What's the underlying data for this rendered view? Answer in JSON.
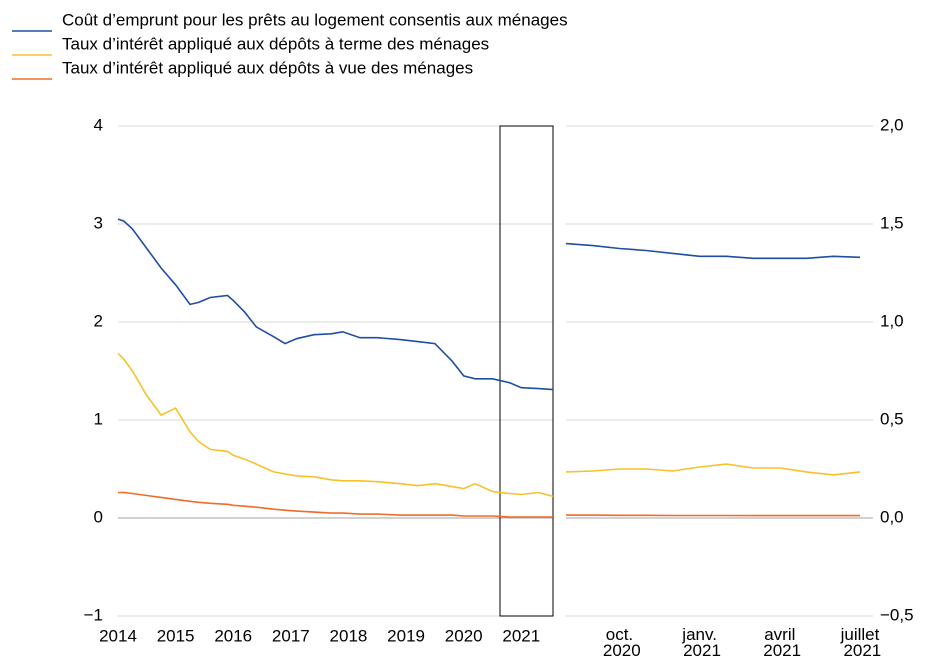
{
  "chart_data": [
    {
      "type": "line",
      "xlim": [
        2014,
        2021.55
      ],
      "xticks": [
        2014,
        2015,
        2016,
        2017,
        2018,
        2019,
        2020,
        2021
      ],
      "ylim": [
        -1,
        4
      ],
      "yticks": [
        {
          "value": -1,
          "label": "−1"
        },
        0,
        1,
        2,
        3,
        4
      ],
      "grid": true,
      "legend": "top-left",
      "x": [
        2014.0,
        2014.1,
        2014.25,
        2014.5,
        2014.75,
        2015.0,
        2015.25,
        2015.4,
        2015.6,
        2015.9,
        2016.0,
        2016.2,
        2016.4,
        2016.7,
        2016.9,
        2017.1,
        2017.4,
        2017.7,
        2017.9,
        2018.2,
        2018.5,
        2018.9,
        2019.2,
        2019.5,
        2019.8,
        2020.0,
        2020.2,
        2020.5,
        2020.8,
        2021.0,
        2021.3,
        2021.55
      ],
      "series": [
        {
          "name": "Coût d’emprunt pour les prêts au logement consentis aux ménages",
          "color": "#1f4ea3",
          "values": [
            3.05,
            3.03,
            2.95,
            2.75,
            2.55,
            2.38,
            2.18,
            2.2,
            2.25,
            2.27,
            2.22,
            2.1,
            1.95,
            1.85,
            1.78,
            1.83,
            1.87,
            1.88,
            1.9,
            1.84,
            1.84,
            1.82,
            1.8,
            1.78,
            1.6,
            1.45,
            1.42,
            1.42,
            1.38,
            1.33,
            1.32,
            1.31
          ]
        },
        {
          "name": "Taux d’intérêt appliqué aux dépôts à terme des ménages",
          "color": "#f5c22b",
          "values": [
            1.68,
            1.62,
            1.5,
            1.25,
            1.05,
            1.12,
            0.88,
            0.78,
            0.7,
            0.68,
            0.64,
            0.6,
            0.55,
            0.47,
            0.45,
            0.43,
            0.42,
            0.39,
            0.38,
            0.38,
            0.37,
            0.35,
            0.33,
            0.35,
            0.32,
            0.3,
            0.35,
            0.27,
            0.25,
            0.24,
            0.26,
            0.22
          ]
        },
        {
          "name": "Taux d’intérêt appliqué aux dépôts à vue des ménages",
          "color": "#f26b2a",
          "values": [
            0.26,
            0.26,
            0.25,
            0.23,
            0.21,
            0.19,
            0.17,
            0.16,
            0.15,
            0.14,
            0.13,
            0.12,
            0.11,
            0.09,
            0.08,
            0.07,
            0.06,
            0.05,
            0.05,
            0.04,
            0.04,
            0.03,
            0.03,
            0.03,
            0.03,
            0.02,
            0.02,
            0.02,
            0.01,
            0.01,
            0.01,
            0.01
          ]
        }
      ]
    },
    {
      "type": "line",
      "categories": [
        null,
        null,
        "oct. 2020",
        null,
        null,
        "janv. 2021",
        null,
        null,
        "avril 2021",
        null,
        null,
        "juillet 2021"
      ],
      "y2lim": [
        -0.5,
        2.0
      ],
      "y2ticks": [
        {
          "value": -0.5,
          "label": "−0,5"
        },
        {
          "value": 0,
          "label": "0,0"
        },
        {
          "value": 0.5,
          "label": "0,5"
        },
        {
          "value": 1,
          "label": "1,0"
        },
        {
          "value": 1.5,
          "label": "1,5"
        },
        {
          "value": 2,
          "label": "2,0"
        }
      ],
      "grid": true,
      "series": [
        {
          "color": "#1f4ea3",
          "axis": "y2",
          "values": [
            1.4,
            1.39,
            1.375,
            1.365,
            1.35,
            1.335,
            1.335,
            1.325,
            1.325,
            1.325,
            1.335,
            1.33
          ]
        },
        {
          "color": "#f5c22b",
          "axis": "y2",
          "values": [
            0.235,
            0.24,
            0.25,
            0.25,
            0.24,
            0.26,
            0.275,
            0.255,
            0.255,
            0.235,
            0.22,
            0.235
          ]
        },
        {
          "color": "#f26b2a",
          "axis": "y2",
          "values": [
            0.015,
            0.015,
            0.014,
            0.014,
            0.013,
            0.013,
            0.013,
            0.012,
            0.012,
            0.012,
            0.012,
            0.012
          ]
        }
      ]
    }
  ]
}
